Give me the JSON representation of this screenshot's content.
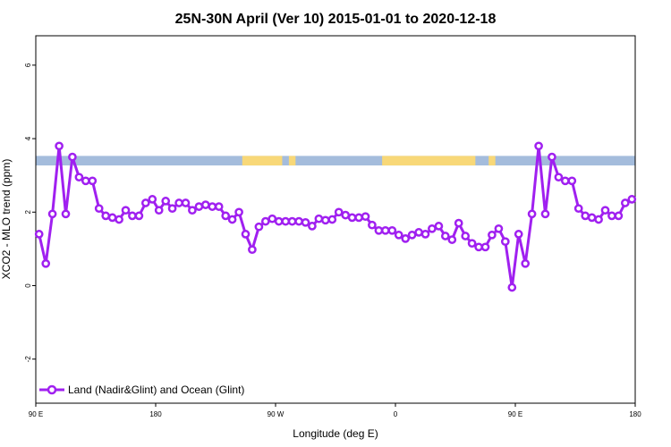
{
  "chart_data": {
    "type": "line",
    "title": "25N-30N April (Ver 10)   2015-01-01 to 2020-12-18",
    "xlabel": "Longitude (deg E)",
    "ylabel": "XCO2 - MLO trend (ppm)",
    "xlim": [
      90,
      540
    ],
    "ylim": [
      -3.2,
      6.8
    ],
    "x_ticks": [
      {
        "value": 90,
        "label": "90 E"
      },
      {
        "value": 180,
        "label": "180"
      },
      {
        "value": 270,
        "label": "90 W"
      },
      {
        "value": 360,
        "label": "0"
      },
      {
        "value": 450,
        "label": "90 E"
      },
      {
        "value": 540,
        "label": "180"
      }
    ],
    "y_ticks": [
      {
        "value": -2,
        "label": "-2"
      },
      {
        "value": 0,
        "label": "0"
      },
      {
        "value": 2,
        "label": "2"
      },
      {
        "value": 4,
        "label": "4"
      },
      {
        "value": 6,
        "label": "6"
      }
    ],
    "grid": false,
    "legend_position": "bottom-left",
    "series": [
      {
        "name": "Land (Nadir&Glint) and Ocean (Glint)",
        "color": "#a020f0",
        "x": [
          92.5,
          97.5,
          102.5,
          107.5,
          112.5,
          117.5,
          122.5,
          127.5,
          132.5,
          137.5,
          142.5,
          147.5,
          152.5,
          157.5,
          162.5,
          167.5,
          172.5,
          177.5,
          182.5,
          187.5,
          192.5,
          197.5,
          202.5,
          207.5,
          212.5,
          217.5,
          222.5,
          227.5,
          232.5,
          237.5,
          242.5,
          247.5,
          252.5,
          257.5,
          262.5,
          267.5,
          272.5,
          277.5,
          282.5,
          287.5,
          292.5,
          297.5,
          302.5,
          307.5,
          312.5,
          317.5,
          322.5,
          327.5,
          332.5,
          337.5,
          342.5,
          347.5,
          352.5,
          357.5,
          362.5,
          367.5,
          372.5,
          377.5,
          382.5,
          387.5,
          392.5,
          397.5,
          402.5,
          407.5,
          412.5,
          417.5,
          422.5,
          427.5,
          432.5,
          437.5,
          442.5,
          447.5,
          452.5,
          457.5,
          462.5,
          467.5,
          472.5,
          477.5,
          482.5,
          487.5,
          492.5,
          497.5,
          502.5,
          507.5,
          512.5,
          517.5,
          522.5,
          527.5,
          532.5,
          537.5
        ],
        "values": [
          1.4,
          0.6,
          1.95,
          3.8,
          1.95,
          3.5,
          2.95,
          2.85,
          2.85,
          2.1,
          1.9,
          1.85,
          1.8,
          2.05,
          1.9,
          1.9,
          2.25,
          2.35,
          2.05,
          2.3,
          2.1,
          2.25,
          2.25,
          2.05,
          2.15,
          2.2,
          2.15,
          2.15,
          1.9,
          1.8,
          2.0,
          1.4,
          0.98,
          1.6,
          1.75,
          1.82,
          1.75,
          1.75,
          1.75,
          1.75,
          1.72,
          1.62,
          1.82,
          1.78,
          1.8,
          2.0,
          1.92,
          1.85,
          1.85,
          1.88,
          1.65,
          1.5,
          1.5,
          1.5,
          1.38,
          1.28,
          1.38,
          1.45,
          1.4,
          1.55,
          1.62,
          1.35,
          1.25,
          1.7,
          1.35,
          1.15,
          1.05,
          1.05,
          1.38,
          1.55,
          1.2,
          -0.05,
          1.4,
          0.6,
          1.95,
          3.8,
          1.95,
          3.5,
          2.95,
          2.85,
          2.85,
          2.1,
          1.9,
          1.85,
          1.8,
          2.05,
          1.9,
          1.9,
          2.25,
          2.35
        ]
      }
    ],
    "surface_band": {
      "y_range": [
        3.27,
        3.53
      ],
      "ocean_color": "#a4bcdc",
      "land_color": "#f8d878",
      "land_x_ranges": [
        [
          245,
          275
        ],
        [
          280,
          285
        ],
        [
          350,
          420
        ],
        [
          430,
          435
        ]
      ]
    }
  }
}
